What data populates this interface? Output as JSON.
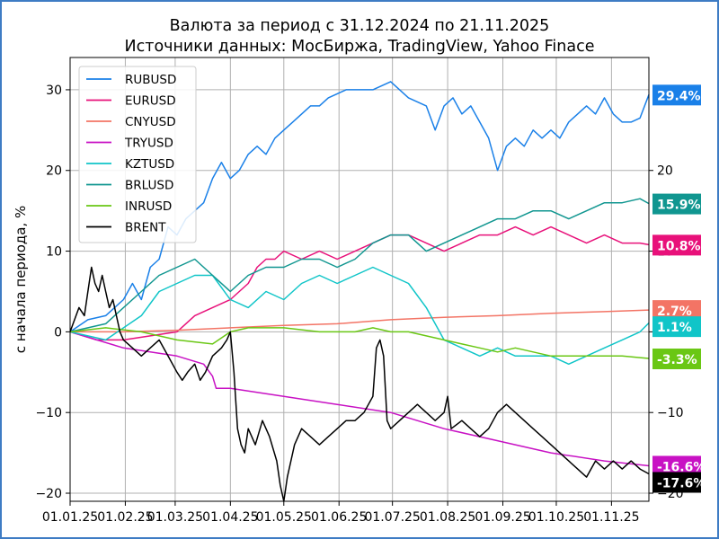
{
  "chart_data": {
    "type": "line",
    "title": "Валюта за период с 31.12.2024 по 21.11.2025",
    "subtitle": "Источники данных: МосБиржа, TradingView, Yahoo Finace",
    "ylabel": "с начала периода, %",
    "ylim": [
      -21,
      34
    ],
    "grid": true,
    "legend_position": "top-left",
    "x_ticks": [
      {
        "i": 0,
        "label": "01.01.25"
      },
      {
        "i": 31,
        "label": "01.02.25"
      },
      {
        "i": 59,
        "label": "01.03.25"
      },
      {
        "i": 90,
        "label": "01.04.25"
      },
      {
        "i": 120,
        "label": "01.05.25"
      },
      {
        "i": 151,
        "label": "01.06.25"
      },
      {
        "i": 181,
        "label": "01.07.25"
      },
      {
        "i": 212,
        "label": "01.08.25"
      },
      {
        "i": 243,
        "label": "01.09.25"
      },
      {
        "i": 273,
        "label": "01.10.25"
      },
      {
        "i": 304,
        "label": "01.11.25"
      }
    ],
    "x_range": [
      0,
      325
    ],
    "y_ticks_left": [
      {
        "v": 30,
        "label": "30"
      },
      {
        "v": 20,
        "label": "20"
      },
      {
        "v": 10,
        "label": "10"
      },
      {
        "v": 0,
        "label": "0"
      },
      {
        "v": -10,
        "label": "−10"
      },
      {
        "v": -20,
        "label": "−20"
      }
    ],
    "y_ticks_right": [
      {
        "v": 20,
        "label": "20"
      },
      {
        "v": 10,
        "label": "10"
      },
      {
        "v": 0,
        "label": "0"
      },
      {
        "v": -10,
        "label": "−10"
      },
      {
        "v": -20,
        "label": "−20"
      }
    ],
    "series": [
      {
        "name": "RUBUSD",
        "color": "#1a80e8",
        "badge": "29.4%",
        "end": 29.4,
        "points": [
          [
            0,
            0
          ],
          [
            10,
            1.5
          ],
          [
            20,
            2
          ],
          [
            30,
            4
          ],
          [
            35,
            6
          ],
          [
            40,
            4
          ],
          [
            45,
            8
          ],
          [
            50,
            9
          ],
          [
            55,
            13
          ],
          [
            60,
            12
          ],
          [
            65,
            14
          ],
          [
            70,
            15
          ],
          [
            75,
            16
          ],
          [
            80,
            19
          ],
          [
            85,
            21
          ],
          [
            90,
            19
          ],
          [
            95,
            20
          ],
          [
            100,
            22
          ],
          [
            105,
            23
          ],
          [
            110,
            22
          ],
          [
            115,
            24
          ],
          [
            120,
            25
          ],
          [
            125,
            26
          ],
          [
            130,
            27
          ],
          [
            135,
            28
          ],
          [
            140,
            28
          ],
          [
            145,
            29
          ],
          [
            150,
            29.5
          ],
          [
            155,
            30
          ],
          [
            160,
            30
          ],
          [
            170,
            30
          ],
          [
            180,
            31
          ],
          [
            185,
            30
          ],
          [
            190,
            29
          ],
          [
            200,
            28
          ],
          [
            205,
            25
          ],
          [
            210,
            28
          ],
          [
            215,
            29
          ],
          [
            220,
            27
          ],
          [
            225,
            28
          ],
          [
            230,
            26
          ],
          [
            235,
            24
          ],
          [
            240,
            20
          ],
          [
            245,
            23
          ],
          [
            250,
            24
          ],
          [
            255,
            23
          ],
          [
            260,
            25
          ],
          [
            265,
            24
          ],
          [
            270,
            25
          ],
          [
            275,
            24
          ],
          [
            280,
            26
          ],
          [
            285,
            27
          ],
          [
            290,
            28
          ],
          [
            295,
            27
          ],
          [
            300,
            29
          ],
          [
            305,
            27
          ],
          [
            310,
            26
          ],
          [
            315,
            26
          ],
          [
            320,
            26.5
          ],
          [
            325,
            29.4
          ]
        ]
      },
      {
        "name": "EURUSD",
        "color": "#e8117a",
        "badge": "10.8%",
        "end": 10.8,
        "points": [
          [
            0,
            0
          ],
          [
            15,
            -1
          ],
          [
            30,
            -1
          ],
          [
            45,
            -0.5
          ],
          [
            60,
            0
          ],
          [
            65,
            1
          ],
          [
            70,
            2
          ],
          [
            80,
            3
          ],
          [
            90,
            4
          ],
          [
            100,
            6
          ],
          [
            105,
            8
          ],
          [
            110,
            9
          ],
          [
            115,
            9
          ],
          [
            120,
            10
          ],
          [
            130,
            9
          ],
          [
            140,
            10
          ],
          [
            150,
            9
          ],
          [
            160,
            10
          ],
          [
            170,
            11
          ],
          [
            180,
            12
          ],
          [
            190,
            12
          ],
          [
            200,
            11
          ],
          [
            210,
            10
          ],
          [
            220,
            11
          ],
          [
            230,
            12
          ],
          [
            240,
            12
          ],
          [
            250,
            13
          ],
          [
            260,
            12
          ],
          [
            270,
            13
          ],
          [
            280,
            12
          ],
          [
            290,
            11
          ],
          [
            300,
            12
          ],
          [
            310,
            11
          ],
          [
            320,
            11
          ],
          [
            325,
            10.8
          ]
        ]
      },
      {
        "name": "CNYUSD",
        "color": "#f37465",
        "badge": "2.7%",
        "end": 2.7,
        "points": [
          [
            0,
            0
          ],
          [
            30,
            0
          ],
          [
            60,
            0.2
          ],
          [
            90,
            0.5
          ],
          [
            120,
            0.8
          ],
          [
            150,
            1
          ],
          [
            180,
            1.5
          ],
          [
            210,
            1.8
          ],
          [
            240,
            2
          ],
          [
            270,
            2.3
          ],
          [
            300,
            2.5
          ],
          [
            325,
            2.7
          ]
        ]
      },
      {
        "name": "TRYUSD",
        "color": "#c812c4",
        "badge": "-16.6%",
        "end": -16.6,
        "points": [
          [
            0,
            0
          ],
          [
            30,
            -2
          ],
          [
            60,
            -3
          ],
          [
            75,
            -4
          ],
          [
            80,
            -5.5
          ],
          [
            82,
            -7
          ],
          [
            90,
            -7
          ],
          [
            120,
            -8
          ],
          [
            150,
            -9
          ],
          [
            180,
            -10
          ],
          [
            210,
            -12
          ],
          [
            240,
            -13.5
          ],
          [
            270,
            -15
          ],
          [
            300,
            -16
          ],
          [
            325,
            -16.6
          ]
        ]
      },
      {
        "name": "KZTUSD",
        "color": "#10c5c8",
        "badge": "1.1%",
        "end": 1.1,
        "points": [
          [
            0,
            0
          ],
          [
            20,
            -1
          ],
          [
            40,
            2
          ],
          [
            50,
            5
          ],
          [
            60,
            6
          ],
          [
            70,
            7
          ],
          [
            80,
            7
          ],
          [
            90,
            4
          ],
          [
            100,
            3
          ],
          [
            110,
            5
          ],
          [
            120,
            4
          ],
          [
            130,
            6
          ],
          [
            140,
            7
          ],
          [
            150,
            6
          ],
          [
            160,
            7
          ],
          [
            170,
            8
          ],
          [
            180,
            7
          ],
          [
            190,
            6
          ],
          [
            200,
            3
          ],
          [
            210,
            -1
          ],
          [
            220,
            -2
          ],
          [
            230,
            -3
          ],
          [
            240,
            -2
          ],
          [
            250,
            -3
          ],
          [
            260,
            -3
          ],
          [
            270,
            -3
          ],
          [
            280,
            -4
          ],
          [
            290,
            -3
          ],
          [
            300,
            -2
          ],
          [
            310,
            -1
          ],
          [
            320,
            0
          ],
          [
            325,
            1.1
          ]
        ]
      },
      {
        "name": "BRLUSD",
        "color": "#109690",
        "badge": "15.9%",
        "end": 15.9,
        "points": [
          [
            0,
            0
          ],
          [
            20,
            1
          ],
          [
            40,
            5
          ],
          [
            50,
            7
          ],
          [
            60,
            8
          ],
          [
            70,
            9
          ],
          [
            80,
            7
          ],
          [
            90,
            5
          ],
          [
            100,
            7
          ],
          [
            110,
            8
          ],
          [
            120,
            8
          ],
          [
            130,
            9
          ],
          [
            140,
            9
          ],
          [
            150,
            8
          ],
          [
            160,
            9
          ],
          [
            170,
            11
          ],
          [
            180,
            12
          ],
          [
            190,
            12
          ],
          [
            200,
            10
          ],
          [
            210,
            11
          ],
          [
            220,
            12
          ],
          [
            230,
            13
          ],
          [
            240,
            14
          ],
          [
            250,
            14
          ],
          [
            260,
            15
          ],
          [
            270,
            15
          ],
          [
            280,
            14
          ],
          [
            290,
            15
          ],
          [
            300,
            16
          ],
          [
            310,
            16
          ],
          [
            320,
            16.5
          ],
          [
            325,
            15.9
          ]
        ]
      },
      {
        "name": "INRUSD",
        "color": "#6ac714",
        "badge": "-3.3%",
        "end": -3.3,
        "points": [
          [
            0,
            0
          ],
          [
            20,
            0.5
          ],
          [
            40,
            0
          ],
          [
            60,
            -1
          ],
          [
            80,
            -1.5
          ],
          [
            90,
            0
          ],
          [
            100,
            0.5
          ],
          [
            120,
            0.5
          ],
          [
            140,
            0
          ],
          [
            160,
            0
          ],
          [
            170,
            0.5
          ],
          [
            180,
            0
          ],
          [
            190,
            0
          ],
          [
            200,
            -0.5
          ],
          [
            210,
            -1
          ],
          [
            220,
            -1.5
          ],
          [
            230,
            -2
          ],
          [
            240,
            -2.5
          ],
          [
            250,
            -2
          ],
          [
            260,
            -2.5
          ],
          [
            270,
            -3
          ],
          [
            280,
            -3
          ],
          [
            290,
            -3
          ],
          [
            300,
            -3
          ],
          [
            310,
            -3
          ],
          [
            320,
            -3.2
          ],
          [
            325,
            -3.3
          ]
        ]
      },
      {
        "name": "BRENT",
        "color": "#000000",
        "badge": "-17.6%",
        "end": -17.6,
        "points": [
          [
            0,
            0
          ],
          [
            5,
            3
          ],
          [
            8,
            2
          ],
          [
            10,
            5
          ],
          [
            12,
            8
          ],
          [
            14,
            6
          ],
          [
            16,
            5
          ],
          [
            18,
            7
          ],
          [
            20,
            5
          ],
          [
            22,
            3
          ],
          [
            24,
            4
          ],
          [
            26,
            2
          ],
          [
            28,
            0
          ],
          [
            30,
            -1
          ],
          [
            35,
            -2
          ],
          [
            40,
            -3
          ],
          [
            45,
            -2
          ],
          [
            50,
            -1
          ],
          [
            55,
            -3
          ],
          [
            60,
            -5
          ],
          [
            63,
            -6
          ],
          [
            66,
            -5
          ],
          [
            70,
            -4
          ],
          [
            73,
            -6
          ],
          [
            76,
            -5
          ],
          [
            80,
            -3
          ],
          [
            85,
            -2
          ],
          [
            88,
            -1
          ],
          [
            90,
            0
          ],
          [
            92,
            -5
          ],
          [
            94,
            -12
          ],
          [
            96,
            -14
          ],
          [
            98,
            -15
          ],
          [
            100,
            -12
          ],
          [
            104,
            -14
          ],
          [
            108,
            -11
          ],
          [
            112,
            -13
          ],
          [
            116,
            -16
          ],
          [
            118,
            -19
          ],
          [
            120,
            -21
          ],
          [
            122,
            -18
          ],
          [
            126,
            -14
          ],
          [
            130,
            -12
          ],
          [
            135,
            -13
          ],
          [
            140,
            -14
          ],
          [
            145,
            -13
          ],
          [
            150,
            -12
          ],
          [
            155,
            -11
          ],
          [
            160,
            -11
          ],
          [
            165,
            -10
          ],
          [
            170,
            -8
          ],
          [
            172,
            -2
          ],
          [
            174,
            -1
          ],
          [
            176,
            -3
          ],
          [
            178,
            -11
          ],
          [
            180,
            -12
          ],
          [
            185,
            -11
          ],
          [
            190,
            -10
          ],
          [
            195,
            -9
          ],
          [
            200,
            -10
          ],
          [
            205,
            -11
          ],
          [
            210,
            -10
          ],
          [
            212,
            -8
          ],
          [
            214,
            -12
          ],
          [
            220,
            -11
          ],
          [
            225,
            -12
          ],
          [
            230,
            -13
          ],
          [
            235,
            -12
          ],
          [
            240,
            -10
          ],
          [
            245,
            -9
          ],
          [
            250,
            -10
          ],
          [
            255,
            -11
          ],
          [
            260,
            -12
          ],
          [
            265,
            -13
          ],
          [
            270,
            -14
          ],
          [
            275,
            -15
          ],
          [
            280,
            -16
          ],
          [
            285,
            -17
          ],
          [
            290,
            -18
          ],
          [
            295,
            -16
          ],
          [
            300,
            -17
          ],
          [
            305,
            -16
          ],
          [
            310,
            -17
          ],
          [
            315,
            -16
          ],
          [
            320,
            -17
          ],
          [
            325,
            -17.6
          ]
        ]
      }
    ]
  }
}
